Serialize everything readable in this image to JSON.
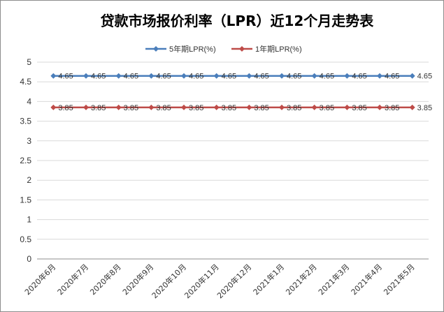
{
  "chart_data": {
    "type": "line",
    "title": "贷款市场报价利率（LPR）近12个月走势表",
    "categories": [
      "2020年6月",
      "2020年7月",
      "2020年8月",
      "2020年9月",
      "2020年10月",
      "2020年11月",
      "2020年12月",
      "2021年1月",
      "2021年2月",
      "2021年3月",
      "2021年4月",
      "2021年5月"
    ],
    "series": [
      {
        "name": "5年期LPR(%)",
        "color": "#4a7ebb",
        "marker": "diamond",
        "values": [
          4.65,
          4.65,
          4.65,
          4.65,
          4.65,
          4.65,
          4.65,
          4.65,
          4.65,
          4.65,
          4.65,
          4.65
        ]
      },
      {
        "name": "1年期LPR(%)",
        "color": "#be4b48",
        "marker": "diamond",
        "values": [
          3.85,
          3.85,
          3.85,
          3.85,
          3.85,
          3.85,
          3.85,
          3.85,
          3.85,
          3.85,
          3.85,
          3.85
        ]
      }
    ],
    "y_ticks": [
      "0",
      "0.5",
      "1",
      "1.5",
      "2",
      "2.5",
      "3",
      "3.5",
      "4",
      "4.5",
      "5"
    ],
    "ylim": [
      0,
      5
    ],
    "grid": true,
    "legend_position": "top"
  }
}
